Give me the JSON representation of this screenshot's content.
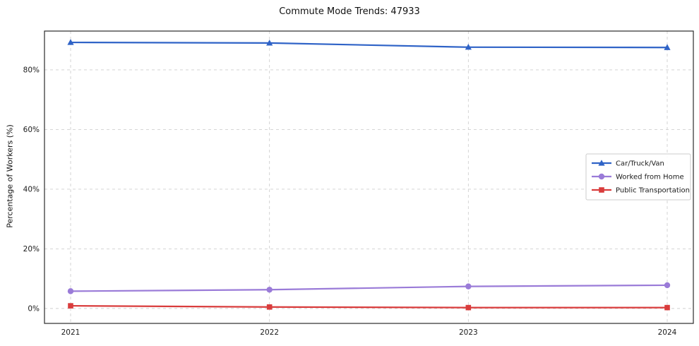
{
  "chart_data": {
    "type": "line",
    "title": "Commute Mode Trends: 47933",
    "xlabel": "",
    "ylabel": "Percentage of Workers (%)",
    "categories": [
      "2021",
      "2022",
      "2023",
      "2024"
    ],
    "yticks": [
      0,
      20,
      40,
      60,
      80
    ],
    "ytick_suffix": "%",
    "ylim": [
      -5,
      93
    ],
    "grid": true,
    "legend_position": "center right",
    "series": [
      {
        "name": "Car/Truck/Van",
        "marker": "triangle",
        "color": "#2f63c7",
        "values": [
          89.2,
          89.0,
          87.6,
          87.5
        ]
      },
      {
        "name": "Worked from Home",
        "marker": "circle",
        "color": "#9a7bd8",
        "values": [
          5.8,
          6.3,
          7.4,
          7.8
        ]
      },
      {
        "name": "Public Transportation",
        "marker": "square",
        "color": "#d93c3c",
        "values": [
          0.9,
          0.5,
          0.3,
          0.3
        ]
      }
    ]
  }
}
